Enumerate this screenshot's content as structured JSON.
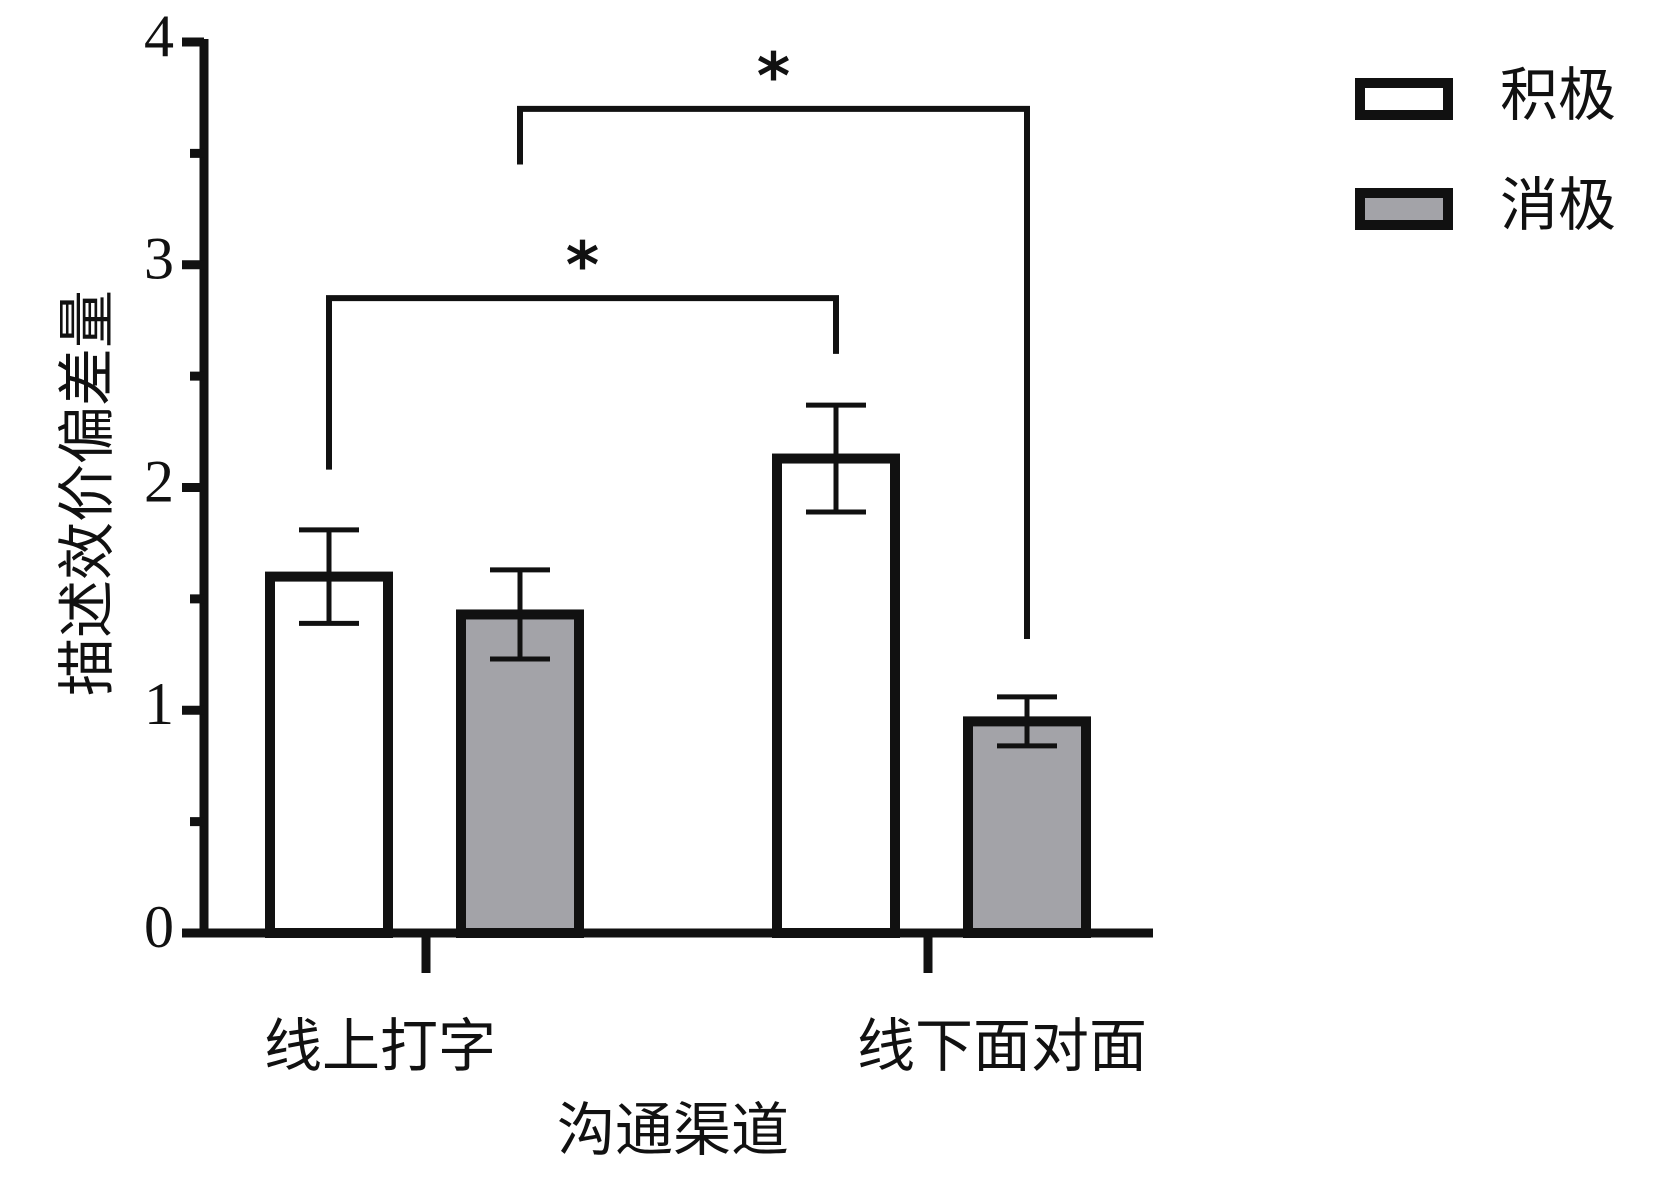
{
  "chart_data": {
    "type": "bar",
    "x_label": "沟通渠道",
    "y_label": "描述效价偏差量",
    "categories": [
      "线上打字",
      "线下面对面"
    ],
    "series": [
      {
        "name": "积极",
        "color": "#ffffff",
        "values": [
          1.6,
          2.13
        ],
        "errors": [
          0.21,
          0.24
        ]
      },
      {
        "name": "消极",
        "color": "#a3a3a8",
        "values": [
          1.43,
          0.95
        ],
        "errors": [
          0.2,
          0.11
        ]
      }
    ],
    "ylim": [
      0,
      4
    ],
    "yticks": [
      0,
      1,
      2,
      3,
      4
    ],
    "minor_yticks": [
      0.5,
      1.5,
      2.5,
      3.5
    ],
    "legend": "top-right",
    "significance": [
      {
        "label": "*",
        "from": [
          0,
          0
        ],
        "to": [
          1,
          0
        ],
        "y": 2.85,
        "ends": [
          2.08,
          2.6
        ]
      },
      {
        "label": "*",
        "from": [
          0,
          1
        ],
        "to": [
          1,
          1
        ],
        "y": 3.7,
        "ends": [
          3.45,
          1.32
        ]
      }
    ]
  }
}
